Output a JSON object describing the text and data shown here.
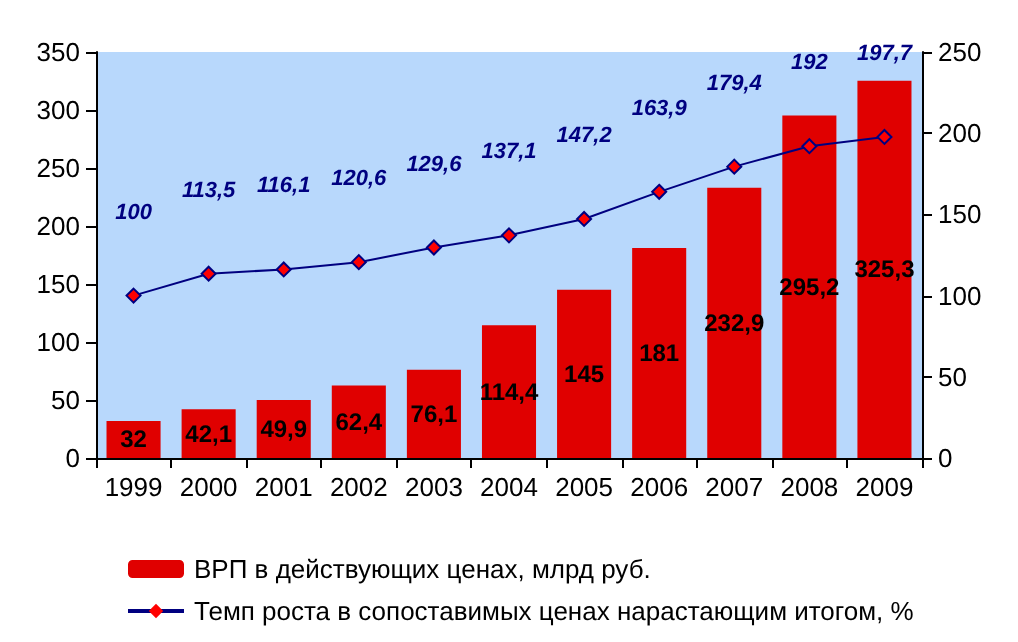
{
  "chart_data": {
    "type": "bar",
    "categories": [
      "1999",
      "2000",
      "2001",
      "2002",
      "2003",
      "2004",
      "2005",
      "2006",
      "2007",
      "2008",
      "2009"
    ],
    "series": [
      {
        "name": "ВРП в действующих ценах, млрд руб.",
        "color": "#e00000",
        "values": [
          32,
          42.1,
          49.9,
          62.4,
          76.1,
          114.4,
          145,
          181,
          232.9,
          295.2,
          325.3
        ],
        "value_labels": [
          "32",
          "42,1",
          "49,9",
          "62,4",
          "76,1",
          "114,4",
          "145",
          "181",
          "232,9",
          "295,2",
          "325,3"
        ]
      },
      {
        "name": "Темп роста в сопоставимых ценах нарастающим итогом, %",
        "type": "line",
        "axis": "y2",
        "color": "#000080",
        "marker": "diamond",
        "values": [
          100,
          113.5,
          116.1,
          120.6,
          129.6,
          137.1,
          147.2,
          163.9,
          179.4,
          192,
          197.7
        ],
        "value_labels": [
          "100",
          "113,5",
          "116,1",
          "120,6",
          "129,6",
          "137,1",
          "147,2",
          "163,9",
          "179,4",
          "192",
          "197,7"
        ]
      }
    ],
    "ylim": [
      0,
      350
    ],
    "yticks": [
      0,
      50,
      100,
      150,
      200,
      250,
      300,
      350
    ],
    "y2lim": [
      0,
      250
    ],
    "y2ticks": [
      0,
      50,
      100,
      150,
      200,
      250
    ],
    "grid": false,
    "legend": "bottom"
  }
}
